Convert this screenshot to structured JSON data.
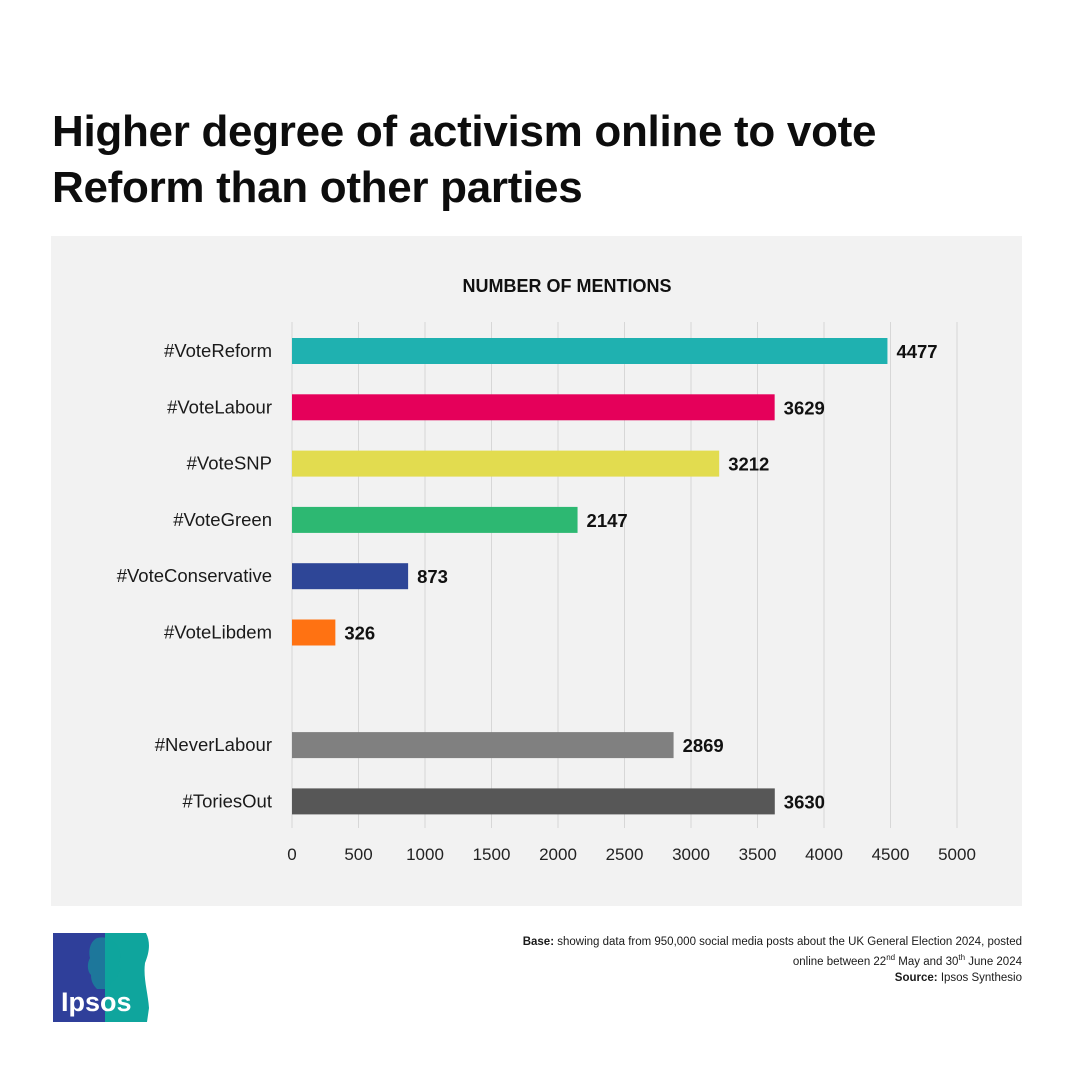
{
  "title": "Higher degree of activism online to vote Reform than other parties",
  "chart_data": {
    "type": "bar",
    "orientation": "horizontal",
    "title": "NUMBER OF MENTIONS",
    "categories": [
      "#VoteReform",
      "#VoteLabour",
      "#VoteSNP",
      "#VoteGreen",
      "#VoteConservative",
      "#VoteLibdem",
      "#NeverLabour",
      "#ToriesOut"
    ],
    "values": [
      4477,
      3629,
      3212,
      2147,
      873,
      326,
      2869,
      3630
    ],
    "colors": [
      "#1fb1b0",
      "#e5005a",
      "#e2dc4f",
      "#2db872",
      "#2e4697",
      "#ff7212",
      "#808080",
      "#575757"
    ],
    "group_gap_after_index": 5,
    "xlim": [
      0,
      5000
    ],
    "xticks": [
      0,
      500,
      1000,
      1500,
      2000,
      2500,
      3000,
      3500,
      4000,
      4500,
      5000
    ],
    "grid": true,
    "data_labels": true
  },
  "footer": {
    "base_label": "Base:",
    "base_text_1": "showing data from 950,000 social media posts about the UK General Election 2024, posted online between 22",
    "sup_1": "nd",
    "base_text_2": " May and 30",
    "sup_2": "th",
    "base_text_3": " June 2024",
    "source_label": "Source:",
    "source_text": "Ipsos Synthesio"
  },
  "logo": {
    "text": "Ipsos",
    "colors": {
      "blue": "#2f3f9a",
      "teal": "#0fa59d"
    }
  }
}
